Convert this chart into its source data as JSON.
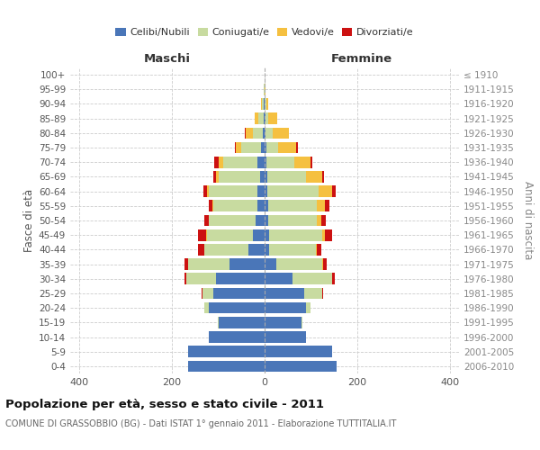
{
  "age_groups": [
    "0-4",
    "5-9",
    "10-14",
    "15-19",
    "20-24",
    "25-29",
    "30-34",
    "35-39",
    "40-44",
    "45-49",
    "50-54",
    "55-59",
    "60-64",
    "65-69",
    "70-74",
    "75-79",
    "80-84",
    "85-89",
    "90-94",
    "95-99",
    "100+"
  ],
  "birth_years": [
    "2006-2010",
    "2001-2005",
    "1996-2000",
    "1991-1995",
    "1986-1990",
    "1981-1985",
    "1976-1980",
    "1971-1975",
    "1966-1970",
    "1961-1965",
    "1956-1960",
    "1951-1955",
    "1946-1950",
    "1941-1945",
    "1936-1940",
    "1931-1935",
    "1926-1930",
    "1921-1925",
    "1916-1920",
    "1911-1915",
    "≤ 1910"
  ],
  "maschi": {
    "celibi": [
      165,
      165,
      120,
      100,
      120,
      110,
      105,
      75,
      35,
      25,
      20,
      15,
      15,
      10,
      15,
      8,
      4,
      2,
      1,
      0,
      0
    ],
    "coniugati": [
      0,
      0,
      0,
      2,
      10,
      25,
      65,
      90,
      95,
      100,
      100,
      95,
      105,
      90,
      75,
      42,
      22,
      12,
      4,
      1,
      0
    ],
    "vedovi": [
      0,
      0,
      0,
      0,
      0,
      0,
      0,
      1,
      1,
      1,
      1,
      2,
      4,
      5,
      10,
      12,
      15,
      8,
      3,
      1,
      0
    ],
    "divorziati": [
      0,
      0,
      0,
      0,
      0,
      2,
      3,
      8,
      12,
      18,
      10,
      8,
      8,
      5,
      8,
      2,
      1,
      0,
      0,
      0,
      0
    ]
  },
  "femmine": {
    "nubili": [
      155,
      145,
      90,
      80,
      90,
      85,
      60,
      25,
      10,
      10,
      8,
      7,
      6,
      5,
      4,
      4,
      2,
      2,
      0,
      0,
      0
    ],
    "coniugate": [
      0,
      0,
      0,
      2,
      10,
      40,
      85,
      100,
      100,
      115,
      105,
      105,
      110,
      85,
      60,
      25,
      15,
      6,
      3,
      0,
      0
    ],
    "vedove": [
      0,
      0,
      0,
      0,
      0,
      0,
      1,
      2,
      3,
      5,
      10,
      18,
      30,
      35,
      35,
      40,
      35,
      20,
      5,
      1,
      0
    ],
    "divorziate": [
      0,
      0,
      0,
      0,
      0,
      2,
      5,
      8,
      10,
      15,
      10,
      10,
      8,
      4,
      4,
      2,
      1,
      0,
      0,
      0,
      0
    ]
  },
  "colors": {
    "celibi": "#4a76b8",
    "coniugati": "#c8dba0",
    "vedovi": "#f5c040",
    "divorziati": "#cc1111"
  },
  "xlim": 420,
  "title": "Popolazione per età, sesso e stato civile - 2011",
  "subtitle": "COMUNE DI GRASSOBBIO (BG) - Dati ISTAT 1° gennaio 2011 - Elaborazione TUTTITALIA.IT",
  "ylabel_left": "Fasce di età",
  "ylabel_right": "Anni di nascita",
  "xlabel_left": "Maschi",
  "xlabel_right": "Femmine",
  "background_color": "#ffffff",
  "grid_color": "#cccccc"
}
